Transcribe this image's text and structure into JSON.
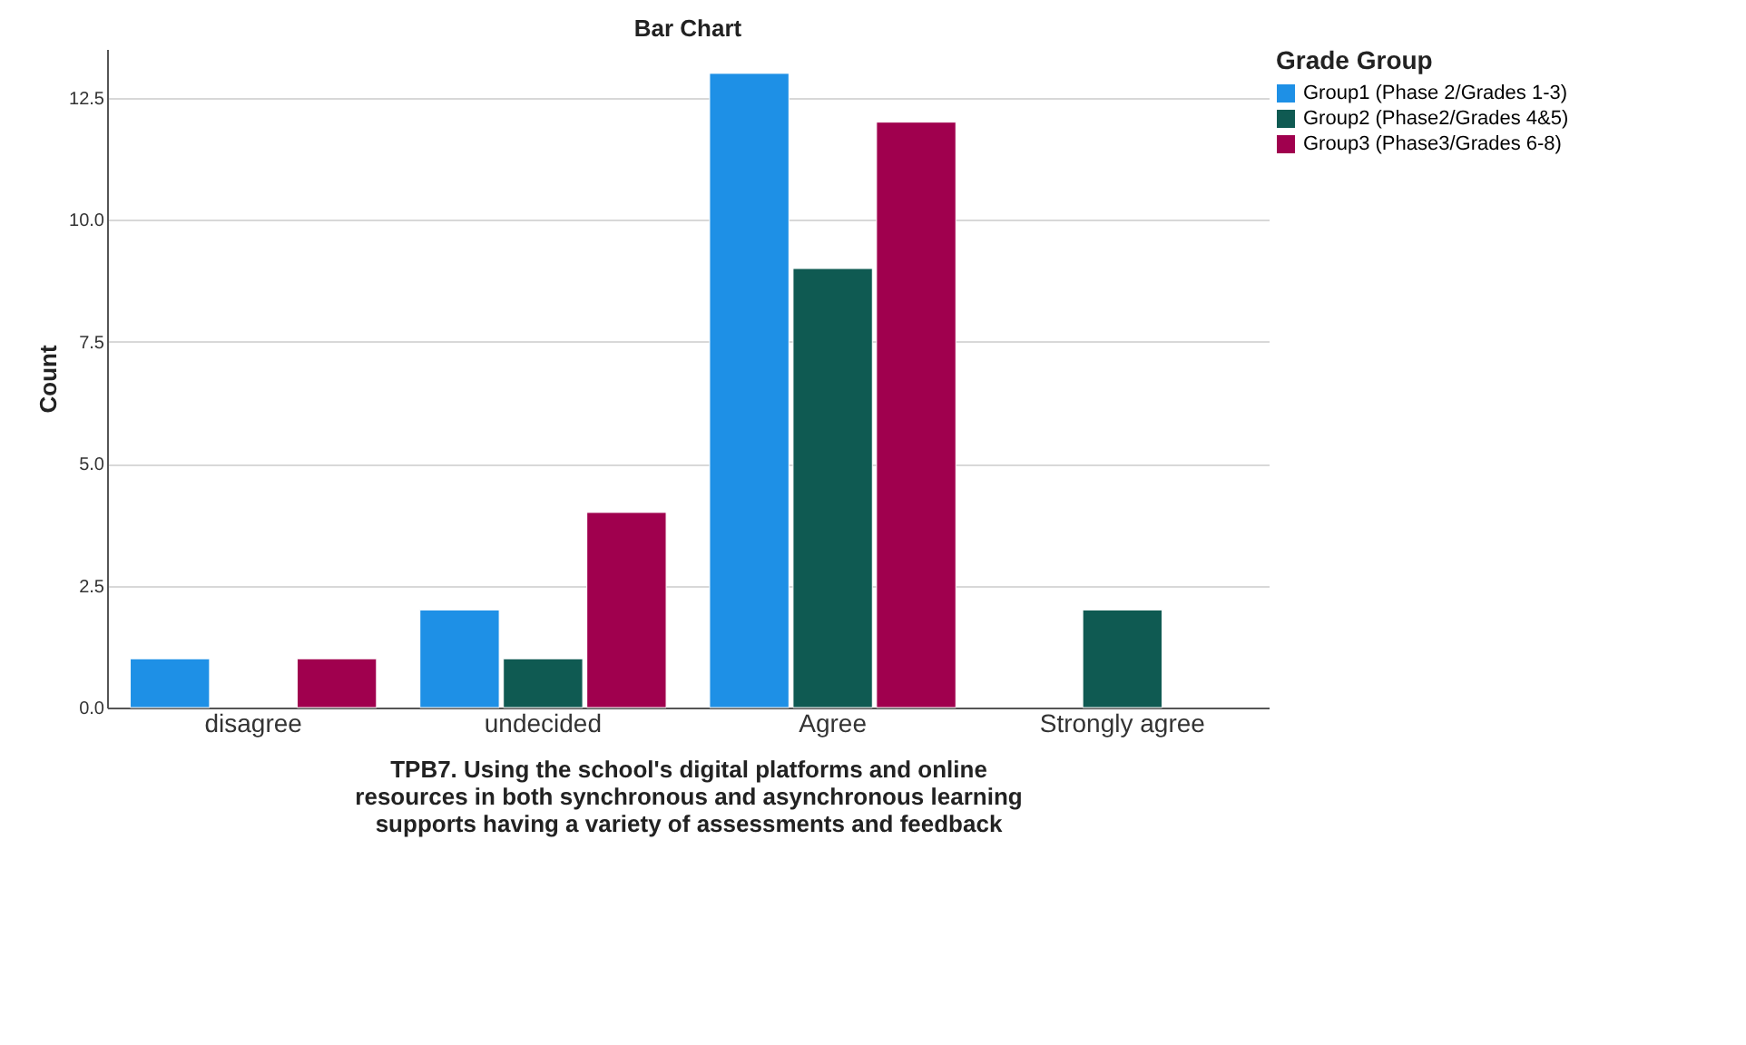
{
  "chart_data": {
    "type": "bar",
    "title": "Bar Chart",
    "xlabel": "TPB7. Using the school's digital platforms and online resources in both synchronous and asynchronous learning supports having a variety of assessments and feedback",
    "ylabel": "Count",
    "legend_title": "Grade Group",
    "categories": [
      "disagree",
      "undecided",
      "Agree",
      "Strongly agree"
    ],
    "series": [
      {
        "name": "Group1 (Phase 2/Grades 1-3)",
        "color": "#1e90e6",
        "values": [
          1,
          2,
          13,
          null
        ]
      },
      {
        "name": "Group2 (Phase2/Grades 4&5)",
        "color": "#0f5a52",
        "values": [
          null,
          1,
          9,
          2
        ]
      },
      {
        "name": "Group3 (Phase3/Grades 6-8)",
        "color": "#a0004e",
        "values": [
          1,
          4,
          12,
          null
        ]
      }
    ],
    "ylim": [
      0,
      13.5
    ],
    "yticks": [
      {
        "value": 0,
        "label": "0.0"
      },
      {
        "value": 2.5,
        "label": "2.5"
      },
      {
        "value": 5,
        "label": "5.0"
      },
      {
        "value": 7.5,
        "label": "7.5"
      },
      {
        "value": 10,
        "label": "10.0"
      },
      {
        "value": 12.5,
        "label": "12.5"
      }
    ],
    "grid": "y",
    "legend": "top right"
  }
}
